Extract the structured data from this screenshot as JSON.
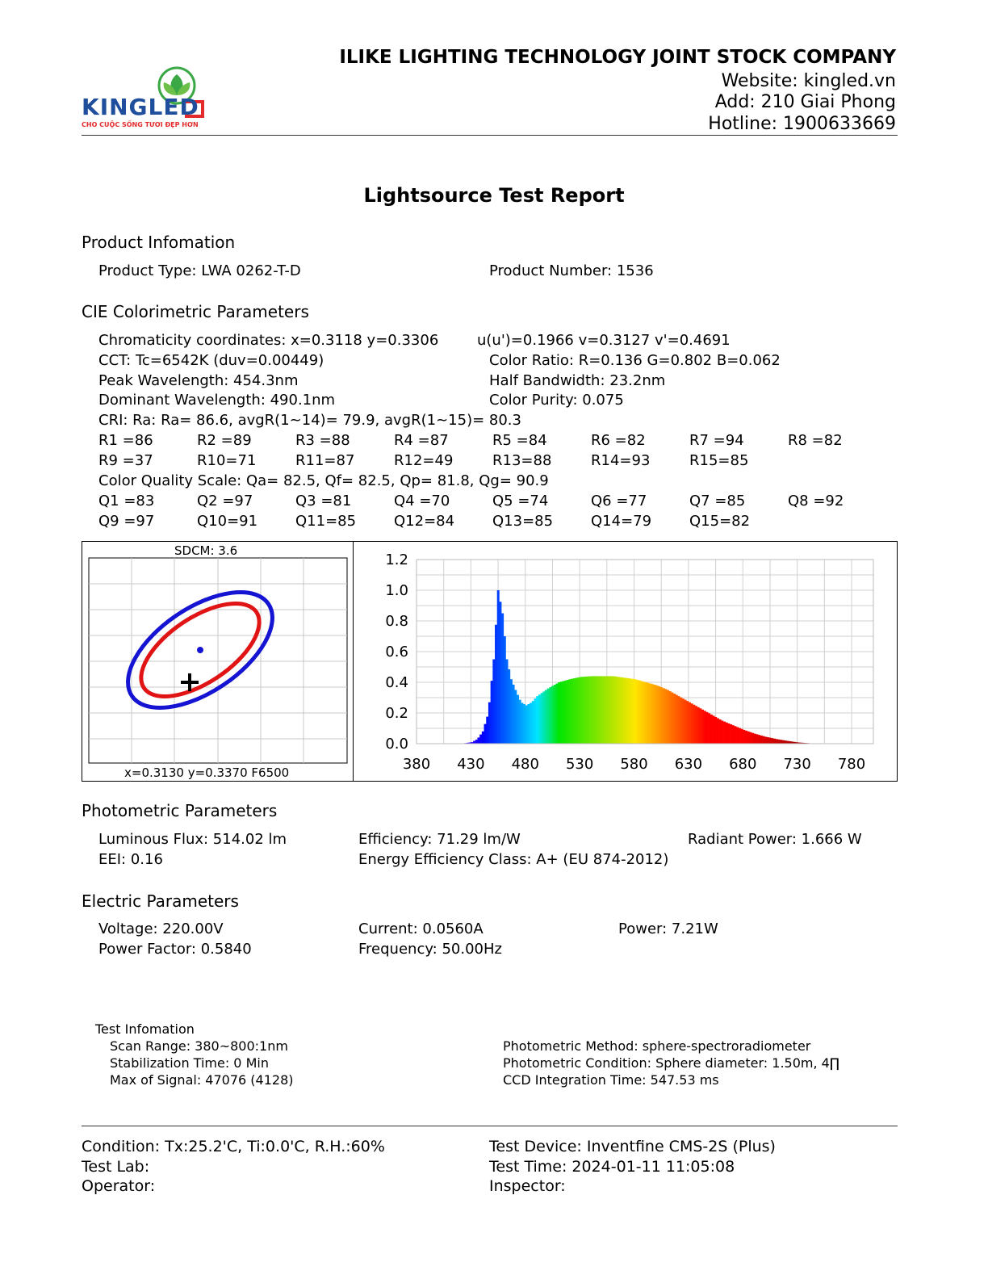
{
  "header": {
    "logo_text": "KINGLED",
    "logo_tagline": "CHO CUỘC SỐNG TƯƠI ĐẸP HƠN",
    "company": "ILIKE LIGHTING TECHNOLOGY JOINT STOCK COMPANY",
    "website": "Website: kingled.vn",
    "address": "Add: 210 Giai Phong",
    "hotline": "Hotline: 1900633669"
  },
  "title": "Lightsource Test Report",
  "product": {
    "heading": "Product Infomation",
    "type": "Product Type: LWA 0262-T-D",
    "number": "Product Number: 1536"
  },
  "cie": {
    "heading": "CIE Colorimetric Parameters",
    "chromaticity": "Chromaticity coordinates: x=0.3118 y=0.3306",
    "uv": "u(u')=0.1966 v=0.3127 v'=0.4691",
    "cct": "CCT: Tc=6542K (duv=0.00449)",
    "color_ratio": "Color Ratio: R=0.136  G=0.802  B=0.062",
    "peak": "Peak Wavelength: 454.3nm",
    "half_bw": "Half Bandwidth: 23.2nm",
    "dominant": "Dominant Wavelength: 490.1nm",
    "purity": "Color Purity: 0.075",
    "cri": "CRI: Ra: Ra= 86.6, avgR(1~14)= 79.9, avgR(1~15)= 80.3",
    "r_row1": [
      "R1 =86",
      "R2 =89",
      "R3 =88",
      "R4 =87",
      "R5 =84",
      "R6 =82",
      "R7 =94",
      "R8 =82"
    ],
    "r_row2": [
      "R9 =37",
      "R10=71",
      "R11=87",
      "R12=49",
      "R13=88",
      "R14=93",
      "R15=85"
    ],
    "cqs": "Color Quality Scale: Qa= 82.5, Qf= 82.5, Qp= 81.8, Qg= 90.9",
    "q_row1": [
      "Q1 =83",
      "Q2 =97",
      "Q3 =81",
      "Q4 =70",
      "Q5 =74",
      "Q6 =77",
      "Q7 =85",
      "Q8 =92"
    ],
    "q_row2": [
      "Q9 =97",
      "Q10=91",
      "Q11=85",
      "Q12=84",
      "Q13=85",
      "Q14=79",
      "Q15=82"
    ]
  },
  "sdcm_panel": {
    "label": "SDCM:   3.6",
    "footer": "x=0.3130 y=0.3370 F6500"
  },
  "chart_data": {
    "type": "area",
    "x": [
      380,
      390,
      400,
      410,
      420,
      430,
      435,
      440,
      445,
      450,
      454,
      458,
      462,
      466,
      470,
      475,
      480,
      485,
      490,
      500,
      510,
      520,
      530,
      540,
      550,
      560,
      570,
      580,
      590,
      600,
      610,
      620,
      630,
      640,
      650,
      660,
      670,
      680,
      690,
      700,
      710,
      720,
      730,
      740,
      750,
      760,
      770,
      780
    ],
    "y": [
      0,
      0,
      0,
      0,
      0,
      0.01,
      0.03,
      0.08,
      0.2,
      0.55,
      1.0,
      0.85,
      0.55,
      0.42,
      0.35,
      0.27,
      0.25,
      0.27,
      0.31,
      0.36,
      0.4,
      0.42,
      0.435,
      0.44,
      0.44,
      0.44,
      0.43,
      0.42,
      0.4,
      0.38,
      0.35,
      0.31,
      0.27,
      0.23,
      0.19,
      0.15,
      0.12,
      0.09,
      0.065,
      0.045,
      0.03,
      0.018,
      0.008,
      0.003,
      0.001,
      0,
      0,
      0
    ],
    "xticks": [
      "380",
      "430",
      "480",
      "530",
      "580",
      "630",
      "680",
      "730",
      "780"
    ],
    "yticks": [
      "0.0",
      "0.2",
      "0.4",
      "0.6",
      "0.8",
      "1.0",
      "1.2"
    ],
    "xlim": [
      380,
      800
    ],
    "ylim": [
      0,
      1.2
    ],
    "grid": true
  },
  "photometric": {
    "heading": "Photometric Parameters",
    "flux": "Luminous Flux: 514.02 lm",
    "efficiency": "Efficiency: 71.29 lm/W",
    "radiant": "Radiant Power: 1.666 W",
    "eei": "EEI:  0.16",
    "energy_class": "Energy Efficiency Class: A+ (EU 874-2012)"
  },
  "electric": {
    "heading": "Electric Parameters",
    "voltage": "Voltage: 220.00V",
    "current": "Current: 0.0560A",
    "power": "Power: 7.21W",
    "pf": "Power Factor: 0.5840",
    "frequency": "Frequency: 50.00Hz"
  },
  "test_info": {
    "heading": "Test Infomation",
    "scan_range": "Scan Range: 380~800:1nm",
    "stabilization": "Stabilization Time: 0 Min",
    "max_signal": "Max of Signal: 47076 (4128)",
    "method": "Photometric Method: sphere-spectroradiometer",
    "condition": "Photometric Condition: Sphere diameter: 1.50m, 4∏",
    "ccd": "CCD Integration Time: 547.53 ms"
  },
  "footer": {
    "condition": "Condition: Tx:25.2'C, Ti:0.0'C, R.H.:60%",
    "lab": "Test Lab:",
    "operator": "Operator:",
    "device": "Test Device: Inventfine CMS-2S (Plus)",
    "time": "Test Time: 2024-01-11 11:05:08",
    "inspector": "Inspector:"
  }
}
